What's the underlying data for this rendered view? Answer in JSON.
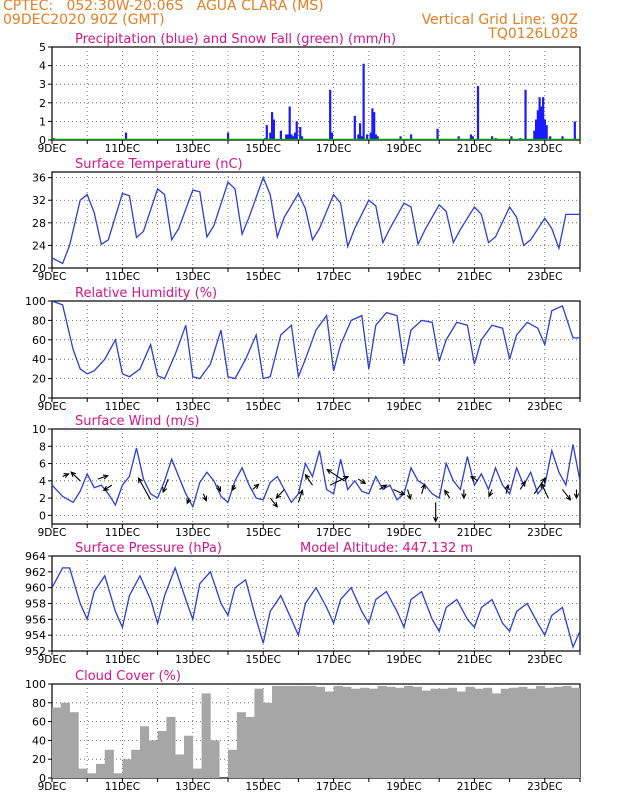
{
  "header": {
    "line1": "CPTEC:   052:30W-20:06S   AGUA CLARA (MS)",
    "line2": "09DEC2020 90Z (GMT)",
    "grid_note": "Vertical Grid Line: 90Z",
    "model_id": "TQ0126L028"
  },
  "colors": {
    "orange": "#e67e22",
    "title": "#d4148c",
    "precip": "#1a1aff",
    "snow": "#00a000",
    "line": "#2a3fd6",
    "cloud": "#a6a6a6",
    "wind_arrow": "#000000"
  },
  "x_axis": {
    "ticks": [
      {
        "day": 9,
        "label": "9DEC"
      },
      {
        "day": 11,
        "label": "11DEC"
      },
      {
        "day": 13,
        "label": "13DEC"
      },
      {
        "day": 15,
        "label": "15DEC"
      },
      {
        "day": 17,
        "label": "17DEC"
      },
      {
        "day": 19,
        "label": "19DEC"
      },
      {
        "day": 21,
        "label": "21DEC"
      },
      {
        "day": 23,
        "label": "23DEC"
      }
    ],
    "start_day": 9.0,
    "end_day": 24.0
  },
  "chart_data": [
    {
      "type": "bar",
      "title": "Precipitation (blue) and Snow Fall (green) (mm/h)",
      "ylim": [
        0,
        5
      ],
      "yticks": [
        0,
        1,
        2,
        3,
        4,
        5
      ],
      "grid": true,
      "series": [
        {
          "name": "Precipitation",
          "x": [
            9.05,
            11.1,
            14.0,
            15.05,
            15.1,
            15.2,
            15.25,
            15.3,
            15.5,
            15.65,
            15.7,
            15.75,
            15.8,
            15.85,
            15.9,
            15.95,
            16.05,
            16.1,
            16.9,
            16.95,
            17.6,
            17.7,
            17.75,
            17.8,
            17.85,
            17.95,
            18.05,
            18.1,
            18.15,
            18.2,
            18.25,
            18.9,
            19.2,
            19.95,
            20.55,
            20.9,
            20.95,
            21.1,
            21.5,
            21.6,
            22.05,
            22.3,
            22.45,
            22.7,
            22.75,
            22.8,
            22.85,
            22.9,
            22.95,
            23.0,
            23.05,
            23.15,
            23.5,
            23.85
          ],
          "values": [
            0.1,
            0.4,
            0.4,
            0.1,
            0.8,
            0.4,
            1.5,
            1.1,
            0.5,
            0.3,
            0.3,
            1.8,
            0.3,
            0.2,
            0.4,
            1.0,
            0.7,
            0.2,
            2.7,
            0.4,
            1.3,
            0.3,
            0.9,
            0.2,
            4.1,
            0.3,
            0.4,
            1.7,
            1.5,
            0.3,
            0.2,
            0.2,
            0.3,
            0.6,
            0.2,
            0.3,
            0.2,
            2.9,
            0.2,
            0.1,
            0.2,
            0.1,
            2.7,
            0.5,
            1.1,
            1.6,
            2.3,
            1.8,
            2.3,
            1.1,
            0.8,
            0.2,
            0.2,
            1.0
          ]
        },
        {
          "name": "Snow Fall",
          "x": [
            9.0,
            24.0
          ],
          "values": [
            0,
            0
          ]
        }
      ]
    },
    {
      "type": "line",
      "title": "Surface Temperature (nC)",
      "ylim": [
        20,
        37
      ],
      "yticks": [
        20,
        24,
        28,
        32,
        36
      ],
      "grid": true,
      "x": [
        9.0,
        9.3,
        9.5,
        9.8,
        10.0,
        10.2,
        10.4,
        10.6,
        11.0,
        11.2,
        11.4,
        11.6,
        12.0,
        12.2,
        12.4,
        12.6,
        13.0,
        13.2,
        13.4,
        13.6,
        14.0,
        14.2,
        14.4,
        14.6,
        15.0,
        15.2,
        15.4,
        15.6,
        16.0,
        16.2,
        16.4,
        16.6,
        17.0,
        17.2,
        17.4,
        17.6,
        18.0,
        18.2,
        18.4,
        18.6,
        19.0,
        19.2,
        19.4,
        19.6,
        20.0,
        20.2,
        20.4,
        20.6,
        21.0,
        21.2,
        21.4,
        21.6,
        22.0,
        22.2,
        22.4,
        22.6,
        23.0,
        23.2,
        23.4,
        23.6,
        24.0
      ],
      "values": [
        21.8,
        20.8,
        24,
        32,
        33,
        29.8,
        24.2,
        25,
        33.2,
        32.8,
        25.4,
        26.5,
        34,
        33,
        25,
        27,
        33.8,
        33.5,
        25.5,
        27.5,
        35.2,
        34,
        26,
        29,
        36,
        33,
        25.5,
        29,
        33.2,
        30.5,
        25,
        27,
        33,
        31.5,
        23.8,
        27,
        32,
        31,
        24.5,
        27,
        31.5,
        30.8,
        24.2,
        26.8,
        31.2,
        30,
        24.5,
        26.8,
        30.8,
        29.5,
        24.5,
        25.5,
        30.8,
        29,
        24,
        25,
        28.8,
        27,
        23.5,
        29.5,
        29.5
      ]
    },
    {
      "type": "line",
      "title": "Relative Humidity (%)",
      "ylim": [
        0,
        100
      ],
      "yticks": [
        0,
        20,
        40,
        60,
        80,
        100
      ],
      "grid": true,
      "x": [
        9.0,
        9.3,
        9.6,
        9.8,
        10.0,
        10.2,
        10.5,
        10.8,
        11.0,
        11.2,
        11.5,
        11.8,
        12.0,
        12.2,
        12.5,
        12.8,
        13.0,
        13.2,
        13.5,
        13.8,
        14.0,
        14.2,
        14.5,
        14.8,
        15.0,
        15.2,
        15.5,
        15.8,
        16.0,
        16.2,
        16.5,
        16.8,
        17.0,
        17.2,
        17.5,
        17.8,
        18.0,
        18.2,
        18.5,
        18.8,
        19.0,
        19.2,
        19.5,
        19.8,
        20.0,
        20.2,
        20.5,
        20.8,
        21.0,
        21.2,
        21.5,
        21.8,
        22.0,
        22.2,
        22.5,
        22.8,
        23.0,
        23.2,
        23.5,
        23.8,
        24.0
      ],
      "values": [
        100,
        96,
        50,
        30,
        25,
        28,
        40,
        60,
        25,
        22,
        30,
        55,
        23,
        20,
        45,
        75,
        22,
        20,
        35,
        70,
        22,
        20,
        40,
        65,
        20,
        22,
        65,
        75,
        22,
        40,
        70,
        85,
        28,
        55,
        80,
        85,
        30,
        75,
        88,
        85,
        35,
        70,
        80,
        78,
        38,
        60,
        78,
        75,
        35,
        60,
        75,
        72,
        40,
        65,
        78,
        72,
        55,
        90,
        95,
        62,
        62
      ]
    },
    {
      "type": "line",
      "title": "Surface Wind (m/s)",
      "ylim": [
        -1,
        10
      ],
      "yticks": [
        0,
        2,
        4,
        6,
        8,
        10
      ],
      "grid": true,
      "x": [
        9.0,
        9.3,
        9.6,
        9.8,
        10.0,
        10.2,
        10.4,
        10.6,
        10.8,
        11.0,
        11.2,
        11.4,
        11.6,
        11.8,
        12.0,
        12.2,
        12.4,
        12.6,
        12.8,
        13.0,
        13.2,
        13.4,
        13.6,
        13.8,
        14.0,
        14.2,
        14.4,
        14.6,
        14.8,
        15.0,
        15.2,
        15.4,
        15.6,
        15.8,
        16.0,
        16.2,
        16.4,
        16.6,
        16.8,
        17.0,
        17.2,
        17.4,
        17.6,
        17.8,
        18.0,
        18.2,
        18.4,
        18.6,
        18.8,
        19.0,
        19.2,
        19.4,
        19.6,
        19.8,
        20.0,
        20.2,
        20.4,
        20.6,
        20.8,
        21.0,
        21.2,
        21.4,
        21.6,
        21.8,
        22.0,
        22.2,
        22.4,
        22.6,
        22.8,
        23.0,
        23.2,
        23.4,
        23.6,
        23.8,
        24.0
      ],
      "values": [
        3.5,
        2.2,
        1.5,
        2.8,
        4.8,
        3.2,
        3.5,
        2.5,
        1.2,
        3.5,
        4.5,
        7.8,
        4.2,
        2.5,
        2.0,
        4.0,
        6.5,
        4.5,
        2.5,
        1.0,
        3.8,
        5.0,
        4.0,
        2.2,
        1.5,
        4.0,
        5.5,
        3.5,
        2.0,
        1.8,
        3.8,
        4.5,
        3.0,
        1.5,
        2.5,
        6.0,
        4.5,
        7.5,
        3.0,
        2.5,
        6.5,
        3.0,
        4.0,
        2.8,
        2.5,
        4.5,
        3.0,
        3.5,
        1.8,
        2.5,
        5.5,
        4.0,
        3.5,
        2.5,
        2.0,
        6.0,
        4.0,
        3.0,
        6.8,
        3.5,
        4.8,
        3.0,
        5.5,
        3.5,
        2.5,
        5.5,
        3.5,
        5.0,
        2.5,
        3.5,
        7.5,
        5.0,
        3.5,
        8.2,
        4.0
      ]
    },
    {
      "type": "line",
      "title": "Surface Pressure (hPa)",
      "subtitle": "Model Altitude: 447.132 m",
      "ylim": [
        952,
        964
      ],
      "yticks": [
        952,
        954,
        956,
        958,
        960,
        962,
        964
      ],
      "grid": true,
      "x": [
        9.0,
        9.3,
        9.5,
        9.8,
        10.0,
        10.2,
        10.5,
        10.8,
        11.0,
        11.2,
        11.5,
        11.8,
        12.0,
        12.2,
        12.5,
        12.8,
        13.0,
        13.2,
        13.5,
        13.8,
        14.0,
        14.2,
        14.5,
        14.8,
        15.0,
        15.2,
        15.5,
        15.8,
        16.0,
        16.2,
        16.5,
        16.8,
        17.0,
        17.2,
        17.5,
        17.8,
        18.0,
        18.2,
        18.5,
        18.8,
        19.0,
        19.2,
        19.5,
        19.8,
        20.0,
        20.2,
        20.5,
        20.8,
        21.0,
        21.2,
        21.5,
        21.8,
        22.0,
        22.2,
        22.5,
        22.8,
        23.0,
        23.2,
        23.5,
        23.8,
        24.0
      ],
      "values": [
        960.0,
        962.5,
        962.5,
        958.0,
        956.0,
        959.5,
        961.5,
        957.0,
        955.0,
        959.0,
        961.5,
        958.5,
        955.5,
        959.0,
        962.5,
        958.5,
        956.0,
        960.5,
        962.0,
        958.0,
        956.5,
        960.0,
        961.0,
        956.0,
        953.0,
        957.0,
        959.0,
        956.0,
        954.0,
        958.0,
        960.0,
        957.5,
        955.5,
        958.5,
        960.0,
        957.0,
        955.5,
        958.5,
        959.5,
        957.0,
        955.0,
        958.5,
        959.5,
        956.0,
        954.5,
        957.5,
        958.5,
        956.0,
        955.0,
        957.5,
        958.5,
        955.5,
        954.5,
        957.0,
        958.0,
        955.5,
        954.0,
        956.5,
        957.5,
        952.5,
        954.5
      ]
    },
    {
      "type": "bar",
      "title": "Cloud Cover (%)",
      "ylim": [
        0,
        100
      ],
      "yticks": [
        0,
        20,
        40,
        60,
        80,
        100
      ],
      "grid": true,
      "x": [
        9.0,
        9.25,
        9.5,
        9.75,
        10.0,
        10.25,
        10.5,
        10.75,
        11.0,
        11.25,
        11.5,
        11.75,
        12.0,
        12.25,
        12.5,
        12.75,
        13.0,
        13.25,
        13.5,
        13.75,
        14.0,
        14.25,
        14.5,
        14.75,
        15.0,
        15.25,
        15.5,
        15.75,
        16.0,
        16.25,
        16.5,
        16.75,
        17.0,
        17.25,
        17.5,
        17.75,
        18.0,
        18.25,
        18.5,
        18.75,
        19.0,
        19.25,
        19.5,
        19.75,
        20.0,
        20.25,
        20.5,
        20.75,
        21.0,
        21.25,
        21.5,
        21.75,
        22.0,
        22.25,
        22.5,
        22.75,
        23.0,
        23.25,
        23.5,
        23.75
      ],
      "values": [
        75,
        80,
        70,
        10,
        5,
        15,
        30,
        5,
        20,
        30,
        55,
        40,
        50,
        65,
        25,
        45,
        10,
        90,
        40,
        0,
        30,
        70,
        65,
        95,
        80,
        98,
        98,
        98,
        98,
        98,
        97,
        92,
        98,
        97,
        95,
        96,
        95,
        98,
        97,
        96,
        98,
        97,
        93,
        95,
        95,
        96,
        92,
        97,
        95,
        96,
        90,
        95,
        96,
        97,
        95,
        98,
        96,
        97,
        98,
        96
      ]
    }
  ],
  "wind_vectors": {
    "x": [
      9.3,
      9.8,
      10.3,
      10.7,
      11.8,
      12.3,
      12.9,
      13.3,
      13.7,
      14.2,
      14.7,
      15.2,
      15.6,
      16.0,
      16.4,
      16.9,
      17.3,
      17.7,
      18.3,
      18.7,
      19.1,
      19.5,
      19.9,
      20.3,
      20.7,
      21.1,
      21.5,
      21.9,
      22.3,
      22.7,
      23.1,
      23.5,
      23.9
    ],
    "y": [
      4.5,
      4.0,
      4.2,
      3.5,
      1.8,
      4.2,
      2.0,
      2.5,
      3.5,
      3.5,
      3.0,
      2.0,
      3.0,
      1.5,
      3.5,
      3.5,
      4.0,
      4.2,
      3.0,
      3.0,
      3.0,
      2.5,
      1.5,
      2.0,
      3.0,
      4.0,
      3.0,
      2.5,
      3.0,
      2.5,
      2.0,
      3.0,
      3.0
    ],
    "u": [
      0.6,
      -0.9,
      1.0,
      -0.8,
      -1.2,
      -0.5,
      -0.2,
      0.3,
      0.3,
      -0.3,
      0.6,
      0.7,
      -0.8,
      0.4,
      -0.7,
      1.8,
      -1.7,
      0.7,
      0.7,
      1.1,
      0.3,
      0.3,
      0.0,
      -0.5,
      0.0,
      -0.7,
      -0.3,
      0.2,
      0.5,
      1.1,
      -0.7,
      0.8,
      0.0
    ],
    "v": [
      0.3,
      1.0,
      0.4,
      -0.6,
      2.5,
      -1.5,
      -0.6,
      -0.8,
      -0.7,
      -0.6,
      0.6,
      -1.0,
      -1.0,
      1.4,
      1.2,
      1.0,
      1.3,
      -0.5,
      0.5,
      -0.6,
      -1.1,
      1.1,
      -2.2,
      0.9,
      -1.0,
      0.5,
      -0.8,
      1.0,
      0.9,
      1.8,
      1.7,
      -1.2,
      -1.0
    ]
  }
}
